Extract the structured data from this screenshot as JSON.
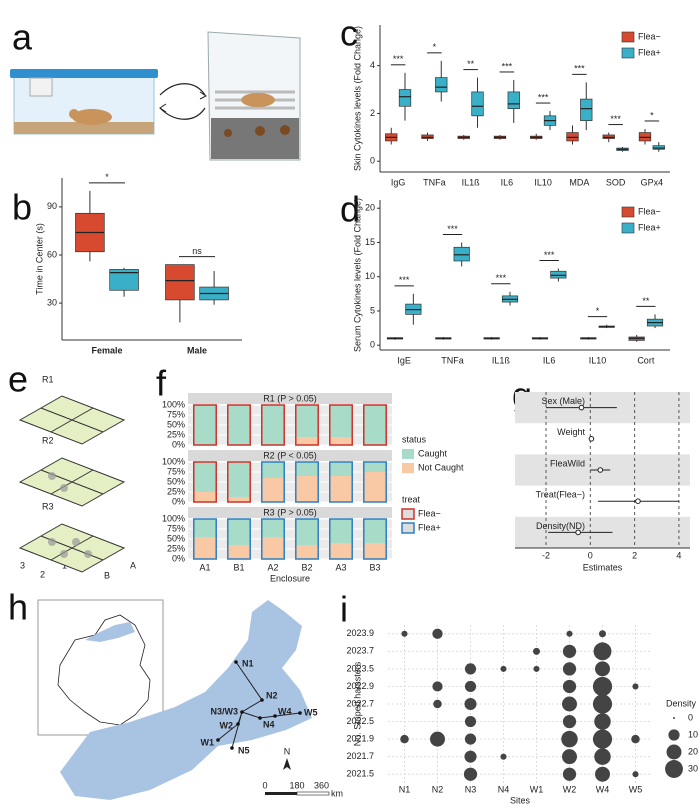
{
  "panel_labels": [
    "a",
    "b",
    "c",
    "d",
    "e",
    "f",
    "g",
    "h",
    "i"
  ],
  "diagram_e": {
    "regions": [
      "R1",
      "R2",
      "R3"
    ],
    "rows": [
      "3",
      "2",
      "1"
    ],
    "cols": [
      "A",
      "B"
    ]
  },
  "map_h": {
    "sites": [
      "N1",
      "N2",
      "N3/W3",
      "N4",
      "N5",
      "W1",
      "W2",
      "W4",
      "W5"
    ],
    "north": "N",
    "scale": [
      "0",
      "180",
      "360"
    ],
    "unit": "km"
  },
  "chart_data": [
    {
      "type": "box",
      "ylabel": "Time in Center (s)",
      "categories": [
        "Female",
        "Male"
      ],
      "series": [
        {
          "color": "#d84a2f",
          "boxes": [
            {
              "min": 56,
              "q1": 62,
              "median": 74,
              "q3": 86,
              "max": 100
            },
            {
              "min": 18,
              "q1": 32,
              "median": 44,
              "q3": 54,
              "max": 54
            }
          ]
        },
        {
          "color": "#3ab0c8",
          "boxes": [
            {
              "min": 34,
              "q1": 38,
              "median": 49,
              "q3": 51,
              "max": 52
            },
            {
              "min": 29,
              "q1": 32,
              "median": 36,
              "q3": 40,
              "max": 50
            }
          ]
        }
      ],
      "significance": [
        "*",
        "ns"
      ],
      "ylim": [
        7,
        108
      ],
      "yticks": [
        30,
        60,
        90
      ]
    },
    {
      "type": "box",
      "ylabel": "Skin Cytokines levels (Fold Change)",
      "categories": [
        "IgG",
        "TNFa",
        "IL1ß",
        "IL6",
        "IL10",
        "MDA",
        "SOD",
        "GPx4"
      ],
      "series": [
        {
          "name": "Flea−",
          "color": "#d84a2f",
          "boxes": [
            {
              "min": 0.7,
              "q1": 0.85,
              "median": 1.0,
              "q3": 1.15,
              "max": 1.4
            },
            {
              "min": 0.85,
              "q1": 0.95,
              "median": 1.0,
              "q3": 1.1,
              "max": 1.2
            },
            {
              "min": 0.9,
              "q1": 0.95,
              "median": 1.0,
              "q3": 1.05,
              "max": 1.1
            },
            {
              "min": 0.9,
              "q1": 0.95,
              "median": 1.0,
              "q3": 1.05,
              "max": 1.1
            },
            {
              "min": 0.9,
              "q1": 0.95,
              "median": 1.0,
              "q3": 1.05,
              "max": 1.15
            },
            {
              "min": 0.7,
              "q1": 0.85,
              "median": 1.0,
              "q3": 1.2,
              "max": 1.5
            },
            {
              "min": 0.8,
              "q1": 0.95,
              "median": 1.0,
              "q3": 1.1,
              "max": 1.2
            },
            {
              "min": 0.7,
              "q1": 0.85,
              "median": 1.0,
              "q3": 1.2,
              "max": 1.35
            }
          ]
        },
        {
          "name": "Flea+",
          "color": "#3ab0c8",
          "boxes": [
            {
              "min": 1.7,
              "q1": 2.3,
              "median": 2.7,
              "q3": 3.0,
              "max": 3.7
            },
            {
              "min": 2.5,
              "q1": 2.9,
              "median": 3.1,
              "q3": 3.5,
              "max": 4.2
            },
            {
              "min": 1.4,
              "q1": 1.9,
              "median": 2.3,
              "q3": 2.9,
              "max": 3.5
            },
            {
              "min": 1.6,
              "q1": 2.2,
              "median": 2.4,
              "q3": 2.9,
              "max": 3.4
            },
            {
              "min": 1.3,
              "q1": 1.5,
              "median": 1.7,
              "q3": 1.9,
              "max": 2.1
            },
            {
              "min": 1.3,
              "q1": 1.7,
              "median": 2.2,
              "q3": 2.6,
              "max": 3.3
            },
            {
              "min": 0.4,
              "q1": 0.45,
              "median": 0.5,
              "q3": 0.55,
              "max": 0.6
            },
            {
              "min": 0.4,
              "q1": 0.5,
              "median": 0.55,
              "q3": 0.65,
              "max": 0.8
            }
          ]
        }
      ],
      "significance": [
        "***",
        "*",
        "**",
        "***",
        "***",
        "***",
        "***",
        "*"
      ],
      "ylim": [
        -0.45,
        5.7
      ],
      "yticks": [
        0,
        2,
        4
      ],
      "legend": "top-right"
    },
    {
      "type": "box",
      "ylabel": "Serum Cytokines levels (Fold Change)",
      "categories": [
        "IgE",
        "TNFa",
        "IL1ß",
        "IL6",
        "IL10",
        "Cort"
      ],
      "series": [
        {
          "name": "Flea−",
          "color": "#d84a2f",
          "boxes": [
            {
              "min": 0.8,
              "q1": 0.9,
              "median": 1.0,
              "q3": 1.1,
              "max": 1.2
            },
            {
              "min": 0.8,
              "q1": 0.9,
              "median": 1.0,
              "q3": 1.1,
              "max": 1.2
            },
            {
              "min": 0.8,
              "q1": 0.9,
              "median": 1.0,
              "q3": 1.1,
              "max": 1.2
            },
            {
              "min": 0.8,
              "q1": 0.9,
              "median": 1.0,
              "q3": 1.1,
              "max": 1.2
            },
            {
              "min": 0.8,
              "q1": 0.9,
              "median": 1.0,
              "q3": 1.1,
              "max": 1.2
            },
            {
              "min": 0.5,
              "q1": 0.7,
              "median": 1.0,
              "q3": 1.2,
              "max": 1.5
            }
          ]
        },
        {
          "name": "Flea+",
          "color": "#3ab0c8",
          "boxes": [
            {
              "min": 3.0,
              "q1": 4.5,
              "median": 5.2,
              "q3": 6.0,
              "max": 7.5
            },
            {
              "min": 11.5,
              "q1": 12.3,
              "median": 13.2,
              "q3": 14.3,
              "max": 15.0
            },
            {
              "min": 5.8,
              "q1": 6.3,
              "median": 6.7,
              "q3": 7.2,
              "max": 7.8
            },
            {
              "min": 9.3,
              "q1": 9.8,
              "median": 10.2,
              "q3": 10.8,
              "max": 11.2
            },
            {
              "min": 2.5,
              "q1": 2.6,
              "median": 2.7,
              "q3": 2.8,
              "max": 3.0
            },
            {
              "min": 2.5,
              "q1": 2.8,
              "median": 3.3,
              "q3": 3.8,
              "max": 4.5
            }
          ]
        }
      ],
      "significance": [
        "***",
        "***",
        "***",
        "***",
        "*",
        "**"
      ],
      "ylim": [
        -0.7,
        21.2
      ],
      "yticks": [
        0,
        5,
        10,
        15,
        20
      ],
      "legend": "top-right"
    },
    {
      "type": "stacked_facets",
      "xlabel": "Enclosure",
      "categories": [
        "A1",
        "B1",
        "A2",
        "B2",
        "A3",
        "B3"
      ],
      "ylim": [
        0,
        100
      ],
      "yticks": [
        {
          "value": 0,
          "label": "0%"
        },
        {
          "value": 25,
          "label": "25%"
        },
        {
          "value": 50,
          "label": "50%"
        },
        {
          "value": 75,
          "label": "75%"
        },
        {
          "value": 100,
          "label": "100%"
        }
      ],
      "legend_title": "status",
      "series": [
        {
          "name": "Caught",
          "color": "#a8dcc8"
        },
        {
          "name": "Not Caught",
          "color": "#f9c8a4"
        }
      ],
      "treat_title": "treat",
      "treat_legend": [
        {
          "name": "Flea−",
          "color": "#d0302a"
        },
        {
          "name": "Flea+",
          "color": "#2f7fc0"
        }
      ],
      "facets": [
        {
          "title": "R1 (P > 0.05)",
          "treat": [
            0,
            0,
            0,
            0,
            0,
            0
          ],
          "values": [
            [
              100,
              100,
              100,
              80,
              80,
              100
            ],
            [
              0,
              0,
              0,
              20,
              20,
              0
            ]
          ]
        },
        {
          "title": "R2 (P < 0.05)",
          "treat": [
            0,
            0,
            1,
            1,
            1,
            1
          ],
          "values": [
            [
              75,
              88,
              40,
              35,
              35,
              25
            ],
            [
              25,
              12,
              60,
              65,
              65,
              75
            ]
          ]
        },
        {
          "title": "R3 (P > 0.05)",
          "treat": [
            1,
            1,
            1,
            1,
            1,
            1
          ],
          "values": [
            [
              45,
              65,
              45,
              65,
              60,
              60
            ],
            [
              55,
              35,
              55,
              35,
              40,
              40
            ]
          ]
        }
      ]
    },
    {
      "type": "forest",
      "xlabel": "Estimates",
      "terms": [
        "Sex (Male)",
        "Weight",
        "FleaWild",
        "Treat(Flea−)",
        "Density(ND)"
      ],
      "estimates": [
        -0.4,
        0.05,
        0.45,
        2.15,
        -0.55
      ],
      "lower": [
        -2.0,
        0.0,
        0.0,
        0.35,
        -1.9
      ],
      "upper": [
        1.2,
        0.1,
        0.9,
        4.0,
        1.0
      ],
      "xlim": [
        -3.4,
        4.5
      ],
      "xticks": [
        -2,
        0,
        2,
        4
      ]
    },
    {
      "type": "bubble",
      "xlabel": "Sites",
      "ylabel": "No. Striped hamsters",
      "categories": [
        "N1",
        "N2",
        "N3",
        "N4",
        "W1",
        "W2",
        "W4",
        "W5"
      ],
      "y_categories": [
        "2021.5",
        "2021.7",
        "2021.9",
        "2022.5",
        "2022.7",
        "2022.9",
        "2023.5",
        "2023.7",
        "2023.9"
      ],
      "values": [
        [
          null,
          null,
          15,
          null,
          null,
          15,
          20,
          2
        ],
        [
          null,
          null,
          12,
          2,
          null,
          20,
          25,
          null
        ],
        [
          5,
          20,
          10,
          null,
          null,
          25,
          35,
          5
        ],
        [
          null,
          null,
          10,
          null,
          null,
          15,
          25,
          null
        ],
        [
          null,
          5,
          12,
          null,
          null,
          20,
          35,
          null
        ],
        [
          null,
          8,
          10,
          null,
          null,
          15,
          35,
          2
        ],
        [
          null,
          null,
          10,
          2,
          2,
          15,
          20,
          null
        ],
        [
          null,
          null,
          null,
          null,
          3,
          15,
          30,
          null
        ],
        [
          2,
          8,
          null,
          null,
          null,
          2,
          3,
          null
        ]
      ],
      "color": "#444444",
      "size_title": "Density",
      "size_legend": [
        0,
        10,
        20,
        30
      ]
    }
  ]
}
